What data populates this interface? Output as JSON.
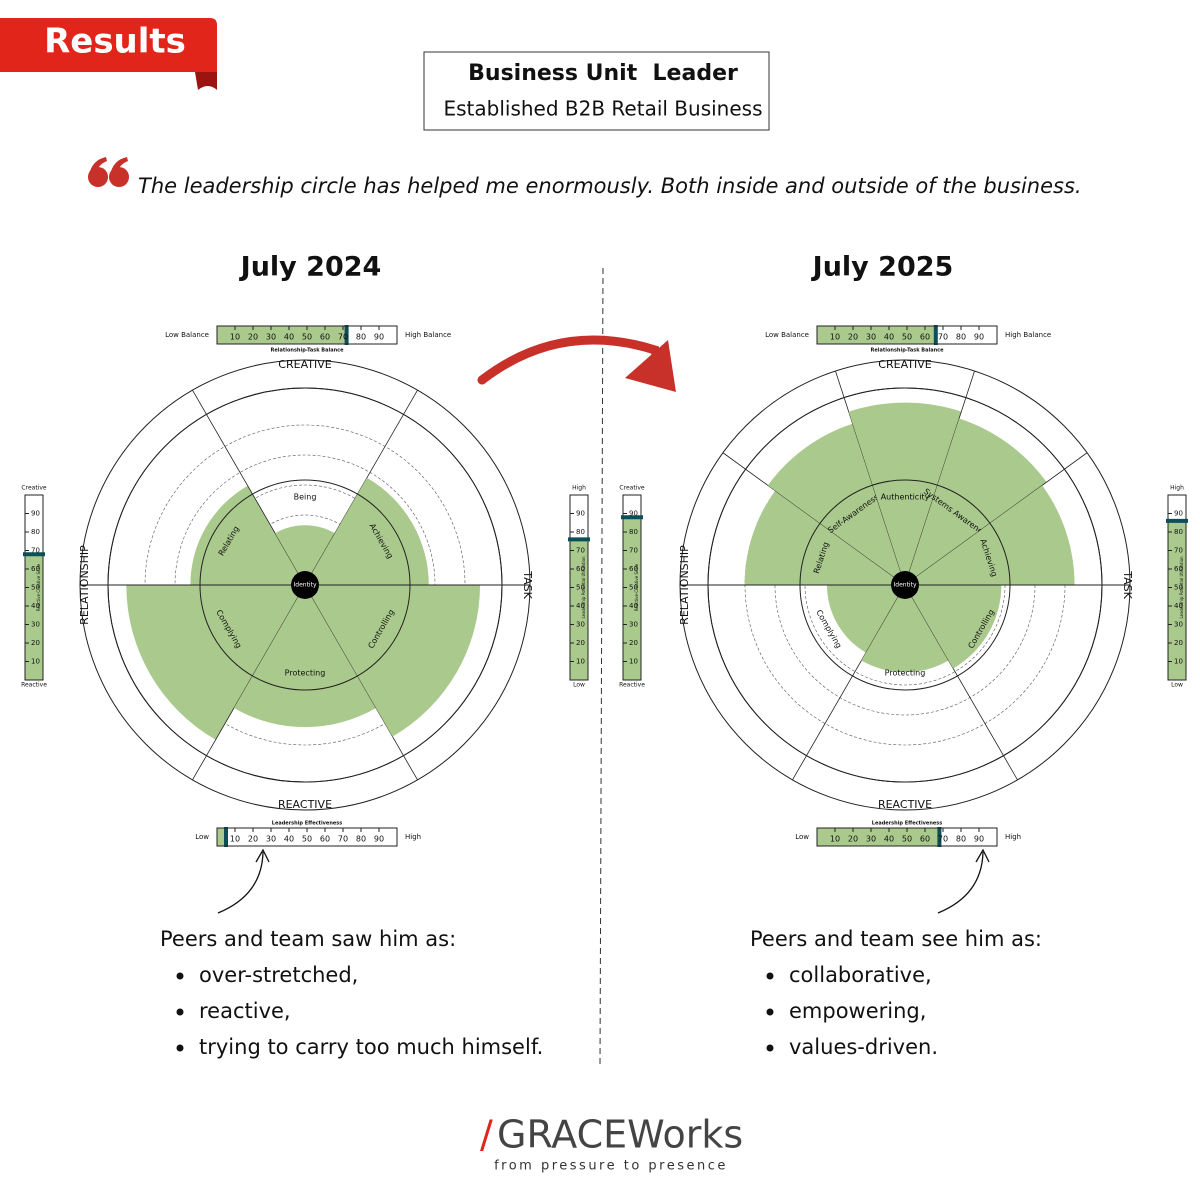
{
  "header": {
    "badge": "Results",
    "title": "Business Unit  Leader",
    "subtitle": "Established B2B Retail Business"
  },
  "quote": "The leadership circle has helped me enormously. Both inside and outside of the business.",
  "scale": {
    "lim": [
      0,
      100
    ],
    "ticks": [
      10,
      20,
      30,
      40,
      50,
      60,
      70,
      80,
      90
    ]
  },
  "axis_labels": {
    "top": "CREATIVE",
    "bottom": "REACTIVE",
    "left": "RELATIONSHIP",
    "right": "TASK",
    "center": "Identity"
  },
  "gauge_labels": {
    "balance_title": "Relationship-Task Balance",
    "balance_low": "Low Balance",
    "balance_high": "High Balance",
    "effect_title": "Leadership Effectiveness",
    "effect_low": "Low",
    "effect_high": "High",
    "left_title": "Reactive-Creative Scale",
    "left_top": "Creative",
    "left_bottom": "Reactive",
    "right_title": "Leadership Potential Utilization",
    "right_top": "High",
    "right_bottom": "Low"
  },
  "panels": [
    {
      "title": "July 2024",
      "balance": 72,
      "effectiveness": 5,
      "reactive_creative": 68,
      "potential": 76,
      "creative_segments": [
        {
          "name": "Relating",
          "value": 55
        },
        {
          "name": "Being",
          "value": 25
        },
        {
          "name": "Achieving",
          "value": 60
        }
      ],
      "reactive_segments": [
        {
          "name": "Complying",
          "value": 90
        },
        {
          "name": "Protecting",
          "value": 70
        },
        {
          "name": "Controlling",
          "value": 88
        }
      ],
      "heading": "Peers and team saw him as:",
      "bullets": [
        "over-stretched,",
        "reactive,",
        "trying to carry too much himself."
      ]
    },
    {
      "title": "July 2025",
      "balance": 66,
      "effectiveness": 68,
      "reactive_creative": 88,
      "potential": 86,
      "creative_segments": [
        {
          "name": "Relating",
          "value": 80
        },
        {
          "name": "Self-Awareness",
          "value": 85
        },
        {
          "name": "Authenticity",
          "value": 92
        },
        {
          "name": "Systems Awareness",
          "value": 88
        },
        {
          "name": "Achieving",
          "value": 85
        }
      ],
      "reactive_segments": [
        {
          "name": "Complying",
          "value": 35
        },
        {
          "name": "Protecting",
          "value": 40
        },
        {
          "name": "Controlling",
          "value": 45
        }
      ],
      "heading": "Peers and team see him as:",
      "bullets": [
        "collaborative,",
        "empowering,",
        "values-driven."
      ]
    }
  ],
  "footer": {
    "brand_slash": "/",
    "brand": "GRACEWorks",
    "tagline": "from pressure to presence"
  }
}
